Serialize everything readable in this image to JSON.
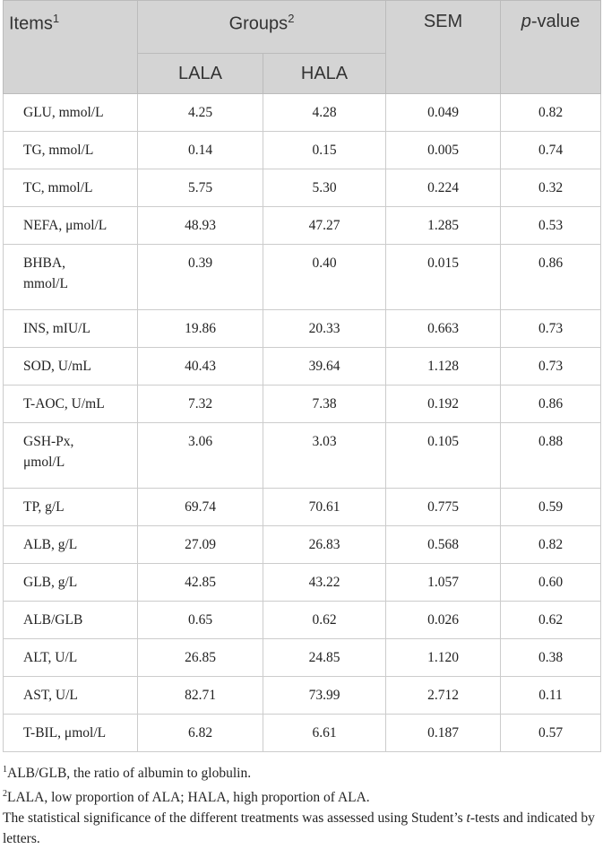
{
  "table": {
    "header": {
      "items": {
        "text": "Items",
        "sup": "1"
      },
      "groups": {
        "text": "Groups",
        "sup": "2"
      },
      "sem": "SEM",
      "p_value": {
        "italic": "p",
        "text": "-value"
      },
      "subgroups": [
        "LALA",
        "HALA"
      ]
    },
    "rows": [
      [
        "GLU, mmol/L",
        "4.25",
        "4.28",
        "0.049",
        "0.82"
      ],
      [
        "TG, mmol/L",
        "0.14",
        "0.15",
        "0.005",
        "0.74"
      ],
      [
        "TC, mmol/L",
        "5.75",
        "5.30",
        "0.224",
        "0.32"
      ],
      [
        "NEFA, μmol/L",
        "48.93",
        "47.27",
        "1.285",
        "0.53"
      ],
      [
        "BHBA, mmol/L",
        "0.39",
        "0.40",
        "0.015",
        "0.86"
      ],
      [
        "INS, mIU/L",
        "19.86",
        "20.33",
        "0.663",
        "0.73"
      ],
      [
        "SOD, U/mL",
        "40.43",
        "39.64",
        "1.128",
        "0.73"
      ],
      [
        "T-AOC, U/mL",
        "7.32",
        "7.38",
        "0.192",
        "0.86"
      ],
      [
        "GSH-Px, μmol/L",
        "3.06",
        "3.03",
        "0.105",
        "0.88"
      ],
      [
        "TP, g/L",
        "69.74",
        "70.61",
        "0.775",
        "0.59"
      ],
      [
        "ALB, g/L",
        "27.09",
        "26.83",
        "0.568",
        "0.82"
      ],
      [
        "GLB, g/L",
        "42.85",
        "43.22",
        "1.057",
        "0.60"
      ],
      [
        "ALB/GLB",
        "0.65",
        "0.62",
        "0.026",
        "0.62"
      ],
      [
        "ALT, U/L",
        "26.85",
        "24.85",
        "1.120",
        "0.38"
      ],
      [
        "AST, U/L",
        "82.71",
        "73.99",
        "2.712",
        "0.11"
      ],
      [
        "T-BIL, μmol/L",
        "6.82",
        "6.61",
        "0.187",
        "0.57"
      ]
    ]
  },
  "footnotes": [
    {
      "sup": "1",
      "text": "ALB/GLB, the ratio of albumin to globulin."
    },
    {
      "sup": "2",
      "text": "LALA, low proportion of ALA; HALA, high proportion of ALA."
    },
    {
      "text": "The statistical significance of the different treatments was assessed using Student’s ",
      "italic": "t",
      "tail": "-tests and indicated by letters."
    }
  ]
}
